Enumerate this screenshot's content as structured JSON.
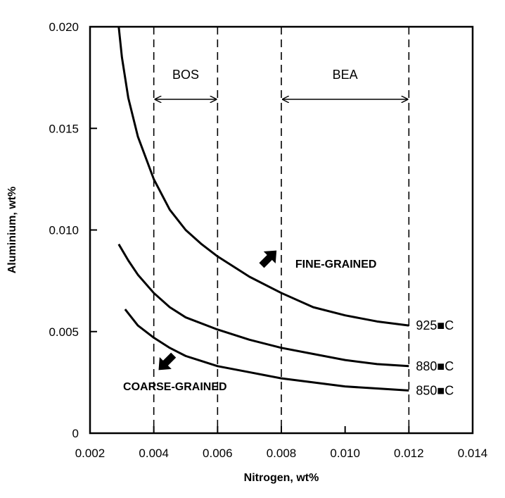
{
  "chart_data": {
    "type": "line",
    "title": "",
    "xlabel": "Nitrogen, wt%",
    "ylabel": "Aluminium, wt%",
    "xlim": [
      0.002,
      0.014
    ],
    "ylim": [
      0,
      0.02
    ],
    "x_ticks": [
      "0.002",
      "0.004",
      "0.006",
      "0.008",
      "0.010",
      "0.012",
      "0.014"
    ],
    "y_ticks": [
      "0",
      "0.005",
      "0.010",
      "0.015",
      "0.020"
    ],
    "grid": false,
    "series": [
      {
        "name": "925°C",
        "label": "925■C",
        "x": [
          0.0029,
          0.003,
          0.0032,
          0.0035,
          0.004,
          0.0045,
          0.005,
          0.0055,
          0.006,
          0.007,
          0.008,
          0.009,
          0.01,
          0.011,
          0.012
        ],
        "y": [
          0.02,
          0.0185,
          0.0165,
          0.0146,
          0.0125,
          0.011,
          0.01,
          0.0093,
          0.0087,
          0.0077,
          0.0069,
          0.0062,
          0.0058,
          0.0055,
          0.0053
        ]
      },
      {
        "name": "880°C",
        "label": "880■C",
        "x": [
          0.0029,
          0.0032,
          0.0035,
          0.004,
          0.0045,
          0.005,
          0.006,
          0.007,
          0.008,
          0.009,
          0.01,
          0.011,
          0.012
        ],
        "y": [
          0.0093,
          0.0085,
          0.0078,
          0.0069,
          0.0062,
          0.0057,
          0.0051,
          0.0046,
          0.0042,
          0.0039,
          0.0036,
          0.0034,
          0.0033
        ]
      },
      {
        "name": "850°C",
        "label": "850■C",
        "x": [
          0.0031,
          0.0035,
          0.004,
          0.0045,
          0.005,
          0.006,
          0.007,
          0.008,
          0.009,
          0.01,
          0.011,
          0.012
        ],
        "y": [
          0.0061,
          0.0053,
          0.0047,
          0.0042,
          0.0038,
          0.0033,
          0.003,
          0.0027,
          0.0025,
          0.0023,
          0.0022,
          0.0021
        ]
      }
    ],
    "regions": [
      {
        "label": "BOS",
        "x_start": 0.004,
        "x_end": 0.006
      },
      {
        "label": "BEA",
        "x_start": 0.008,
        "x_end": 0.012
      }
    ],
    "annotations": [
      {
        "text": "FINE-GRAINED",
        "arrow_x": 0.0076,
        "arrow_y": 0.0086,
        "direction": "up-right"
      },
      {
        "text": "COARSE-GRAINED",
        "arrow_x": 0.0044,
        "arrow_y": 0.0035,
        "direction": "down-left"
      }
    ]
  }
}
